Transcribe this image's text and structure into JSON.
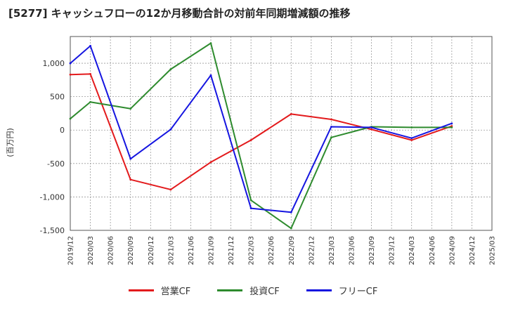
{
  "chart_data": {
    "type": "line",
    "title": "[5277]  キャッシュフローの12か月移動合計の対前年同期増減額の推移",
    "ylabel": "(百万円)",
    "xlabel": "",
    "ylim": [
      -1500,
      1400
    ],
    "yticks": [
      1000,
      500,
      0,
      -500,
      -1000,
      -1500
    ],
    "ytick_labels": [
      "1,000",
      "500",
      "0",
      "-500",
      "-1,000",
      "-1,500"
    ],
    "categories": [
      "2019/12",
      "2020/03",
      "2020/06",
      "2020/09",
      "2020/12",
      "2021/03",
      "2021/06",
      "2021/09",
      "2021/12",
      "2022/03",
      "2022/06",
      "2022/09",
      "2022/12",
      "2023/03",
      "2023/06",
      "2023/09",
      "2023/12",
      "2024/03",
      "2024/06",
      "2024/09",
      "2024/12",
      "2025/03"
    ],
    "grid": true,
    "legend_position": "bottom",
    "series": [
      {
        "name": "営業CF",
        "color": "#e31a1c",
        "values": [
          830,
          840,
          null,
          -740,
          null,
          -890,
          null,
          -480,
          null,
          -150,
          null,
          240,
          null,
          160,
          null,
          10,
          null,
          -150,
          null,
          60,
          null,
          null
        ]
      },
      {
        "name": "投資CF",
        "color": "#2e8b2e",
        "values": [
          170,
          420,
          null,
          320,
          null,
          910,
          null,
          1300,
          null,
          -1050,
          null,
          -1470,
          null,
          -110,
          null,
          50,
          null,
          40,
          null,
          40,
          null,
          null
        ]
      },
      {
        "name": "フリーCF",
        "color": "#1515e0",
        "values": [
          1000,
          1260,
          null,
          -430,
          null,
          10,
          null,
          820,
          null,
          -1170,
          null,
          -1230,
          null,
          50,
          null,
          40,
          null,
          -120,
          null,
          100,
          null,
          null
        ]
      }
    ]
  }
}
